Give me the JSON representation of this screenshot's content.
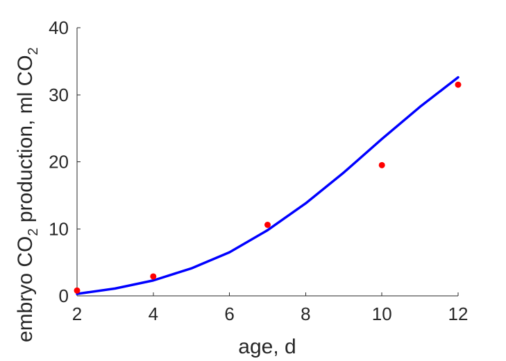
{
  "chart_data": {
    "type": "scatter",
    "title": "",
    "xlabel": "age, d",
    "ylabel": {
      "prefix": "embryo CO",
      "sub1": "2",
      "middle": " production, ml CO",
      "sub2": "2"
    },
    "xlim": [
      2,
      12
    ],
    "ylim": [
      0,
      40
    ],
    "xticks": [
      2,
      4,
      6,
      8,
      10,
      12
    ],
    "yticks": [
      0,
      10,
      20,
      30,
      40
    ],
    "grid": false,
    "series": [
      {
        "kind": "points",
        "color": "#ff0000",
        "x": [
          2,
          4,
          7,
          10,
          12
        ],
        "y": [
          0.8,
          2.9,
          10.6,
          19.5,
          31.5
        ]
      },
      {
        "kind": "line",
        "color": "#0000ff",
        "x": [
          2,
          3,
          4,
          5,
          6,
          7,
          8,
          9,
          10,
          11,
          12
        ],
        "y": [
          0.3,
          1.1,
          2.3,
          4.1,
          6.5,
          9.8,
          13.8,
          18.4,
          23.4,
          28.2,
          32.6
        ]
      }
    ]
  }
}
